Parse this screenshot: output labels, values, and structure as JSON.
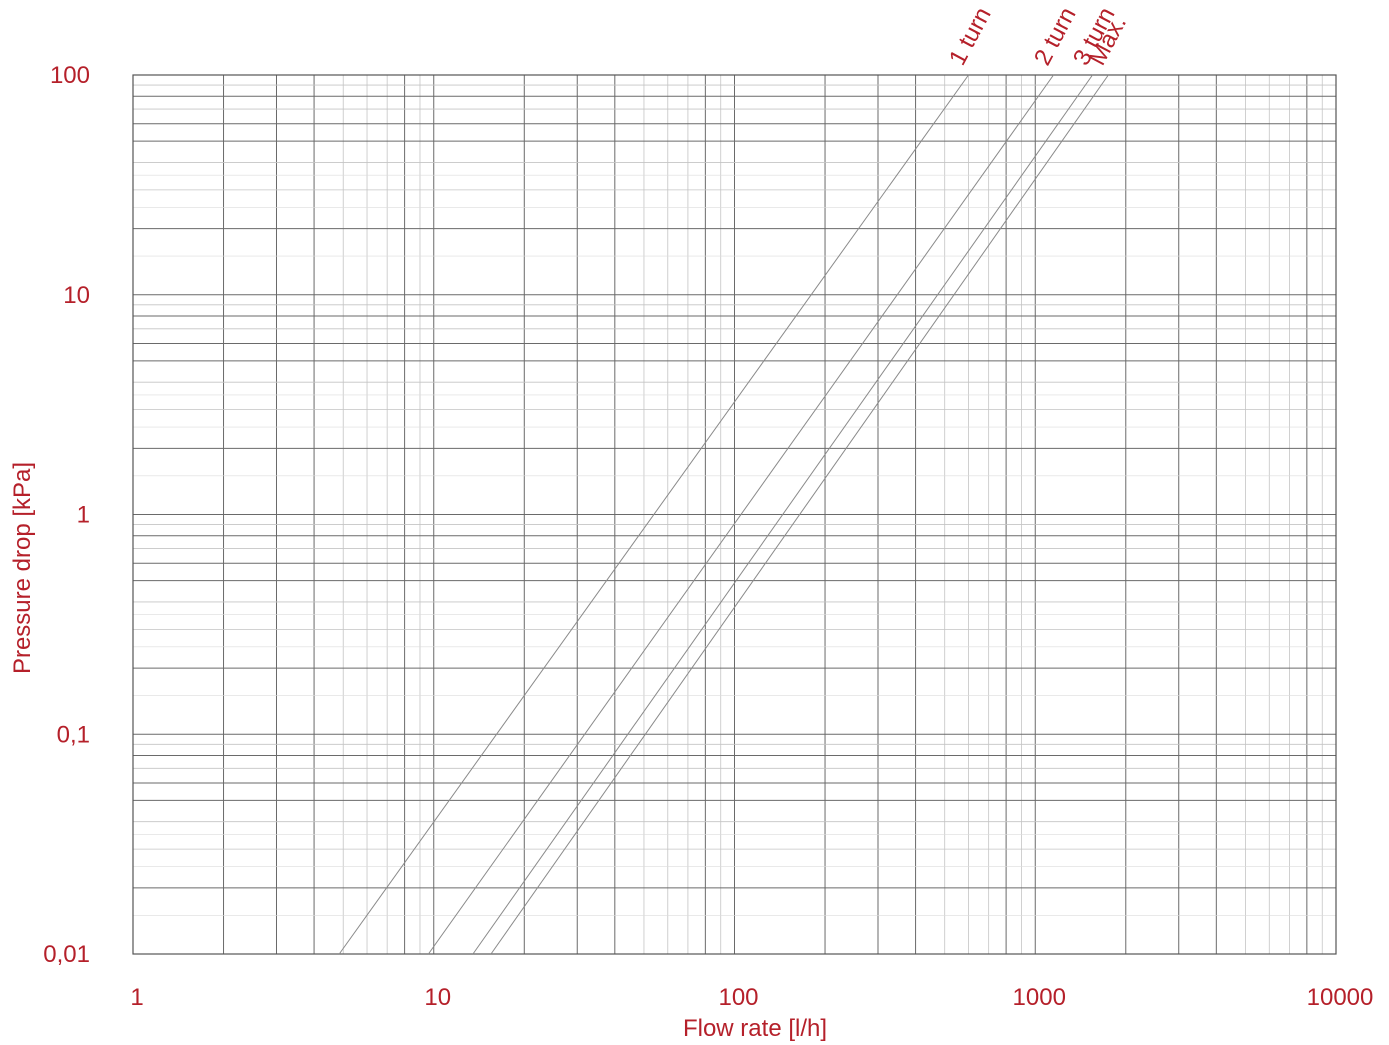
{
  "chart_data": {
    "type": "line",
    "title": "",
    "xlabel": "Flow rate [l/h]",
    "ylabel": "Pressure drop [kPa]",
    "x_scale": "log",
    "y_scale": "log",
    "xlim": [
      1,
      10000
    ],
    "ylim": [
      0.01,
      100
    ],
    "x_ticks": [
      1,
      10,
      100,
      1000,
      10000
    ],
    "x_tick_labels": [
      "1",
      "10",
      "100",
      "1000",
      "10000"
    ],
    "y_ticks": [
      0.01,
      0.1,
      1,
      10,
      100
    ],
    "y_tick_labels": [
      "0,01",
      "0,1",
      "1",
      "10",
      "100"
    ],
    "grid": true,
    "series": [
      {
        "name": "1 turn",
        "x": [
          4.85,
          600
        ],
        "y": [
          0.01,
          100
        ]
      },
      {
        "name": "2 turn",
        "x": [
          9.6,
          1150
        ],
        "y": [
          0.01,
          100
        ]
      },
      {
        "name": "3 turn",
        "x": [
          13.5,
          1550
        ],
        "y": [
          0.01,
          100
        ]
      },
      {
        "name": "Max.",
        "x": [
          15.5,
          1750
        ],
        "y": [
          0.01,
          100
        ]
      }
    ],
    "colors": {
      "text": "#b5202a",
      "series_line": "#8a8a8a"
    }
  }
}
